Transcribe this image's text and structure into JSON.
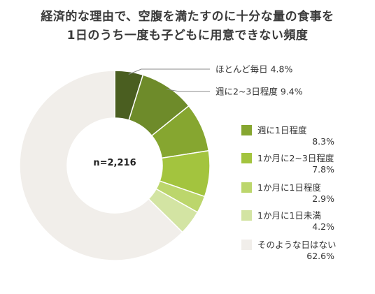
{
  "title": {
    "line1": "経済的な理由で、空腹を満たすのに十分な量の食事を",
    "line2": "1日のうち一度も子どもに用意できない頻度"
  },
  "center_label": "n=2,216",
  "chart_data": {
    "type": "pie",
    "donut": true,
    "title": "経済的な理由で、空腹を満たすのに十分な量の食事を 1日のうち一度も子どもに用意できない頻度",
    "n_label": "n=2,216",
    "legend_position": "right",
    "slices": [
      {
        "label": "ほとんど毎日",
        "value": 4.8,
        "value_label": "4.8%",
        "color": "#4a5e20"
      },
      {
        "label": "週に2~3日程度",
        "value": 9.4,
        "value_label": "9.4%",
        "color": "#6e8b2a"
      },
      {
        "label": "週に1日程度",
        "value": 8.3,
        "value_label": "8.3%",
        "color": "#86a630"
      },
      {
        "label": "1か月に2~3日程度",
        "value": 7.8,
        "value_label": "7.8%",
        "color": "#a3c43e"
      },
      {
        "label": "1か月に1日程度",
        "value": 2.9,
        "value_label": "2.9%",
        "color": "#bcd66c"
      },
      {
        "label": "1か月に1日未満",
        "value": 4.2,
        "value_label": "4.2%",
        "color": "#d3e4a3"
      },
      {
        "label": "そのような日はない",
        "value": 62.6,
        "value_label": "62.6%",
        "color": "#f1eeea"
      }
    ],
    "callouts": [
      {
        "text": "ほとんど毎日 4.8%",
        "slice": 0
      },
      {
        "text": "週に2~3日程度 9.4%",
        "slice": 1
      }
    ]
  }
}
